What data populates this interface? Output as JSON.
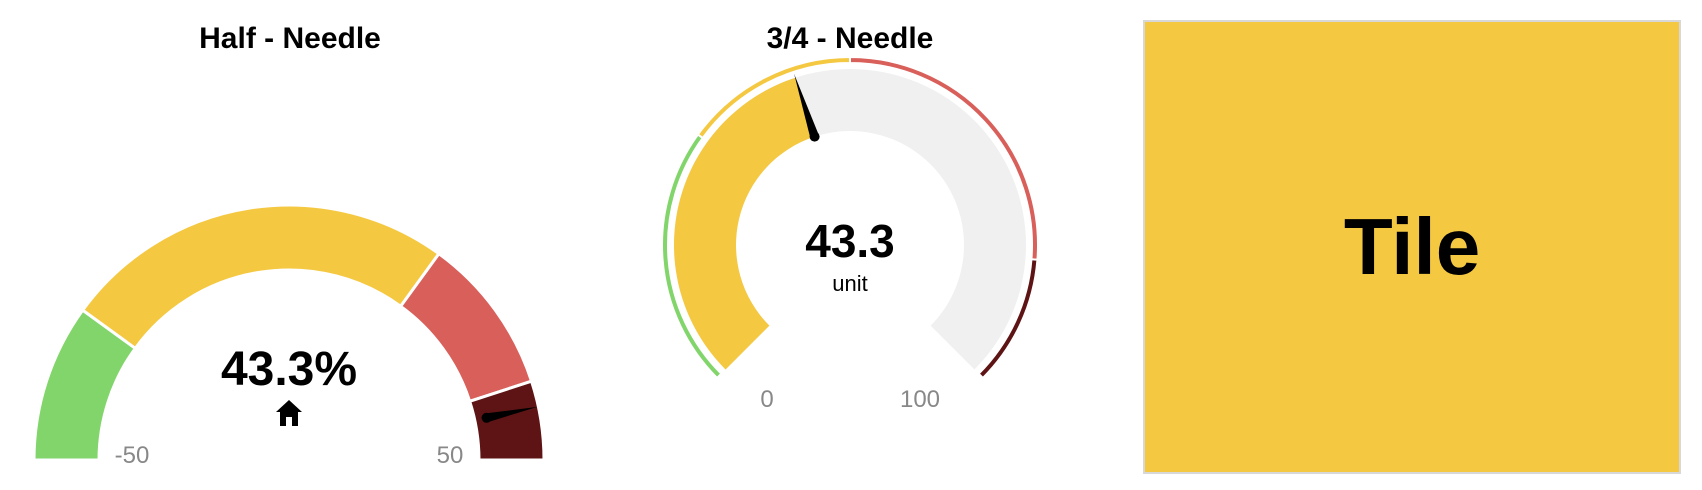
{
  "chart_data": [
    {
      "type": "gauge",
      "title": "Half - Needle",
      "style": "half",
      "min": -50,
      "max": 50,
      "min_label": "-50",
      "max_label": "50",
      "value": 43.3,
      "value_label": "43.3%",
      "icon": "home-icon",
      "bands": [
        {
          "from": -50,
          "to": -30,
          "color": "#82d56b"
        },
        {
          "from": -30,
          "to": 20,
          "color": "#f5c842"
        },
        {
          "from": 20,
          "to": 40,
          "color": "#d95f5a"
        },
        {
          "from": 40,
          "to": 50,
          "color": "#5e1414"
        }
      ]
    },
    {
      "type": "gauge",
      "title": "3/4 - Needle",
      "style": "three-quarter",
      "min": 0,
      "max": 100,
      "min_label": "0",
      "max_label": "100",
      "value": 43.3,
      "value_label": "43.3",
      "unit": "unit",
      "fill_color": "#f5c842",
      "track_color": "#f0f0f0",
      "bands": [
        {
          "from": 0,
          "to": 30,
          "color": "#82d56b"
        },
        {
          "from": 30,
          "to": 50,
          "color": "#f5c842"
        },
        {
          "from": 50,
          "to": 85,
          "color": "#d95f5a"
        },
        {
          "from": 85,
          "to": 100,
          "color": "#5e1414"
        }
      ]
    }
  ],
  "tile": {
    "label": "Tile",
    "color": "#f5c842"
  }
}
